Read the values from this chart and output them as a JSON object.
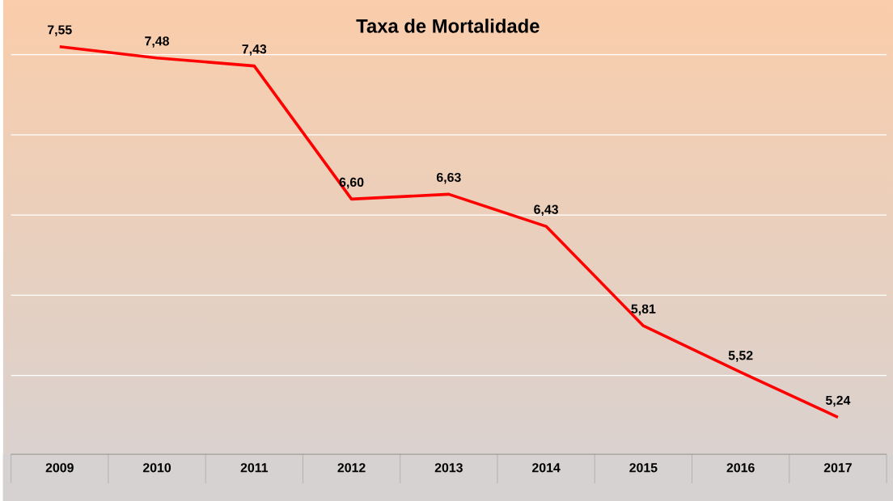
{
  "chart_data": {
    "type": "line",
    "title": "Taxa de Mortalidade",
    "categories": [
      "2009",
      "2010",
      "2011",
      "2012",
      "2013",
      "2014",
      "2015",
      "2016",
      "2017"
    ],
    "values": [
      7.55,
      7.48,
      7.43,
      6.6,
      6.63,
      6.43,
      5.81,
      5.52,
      5.24
    ],
    "value_labels": [
      "7,55",
      "7,48",
      "7,43",
      "6,60",
      "6,63",
      "6,43",
      "5,81",
      "5,52",
      "5,24"
    ],
    "color": "#ff0000",
    "grid": "y",
    "tick_labels": "x",
    "marker": "none",
    "line_style": "solid"
  }
}
